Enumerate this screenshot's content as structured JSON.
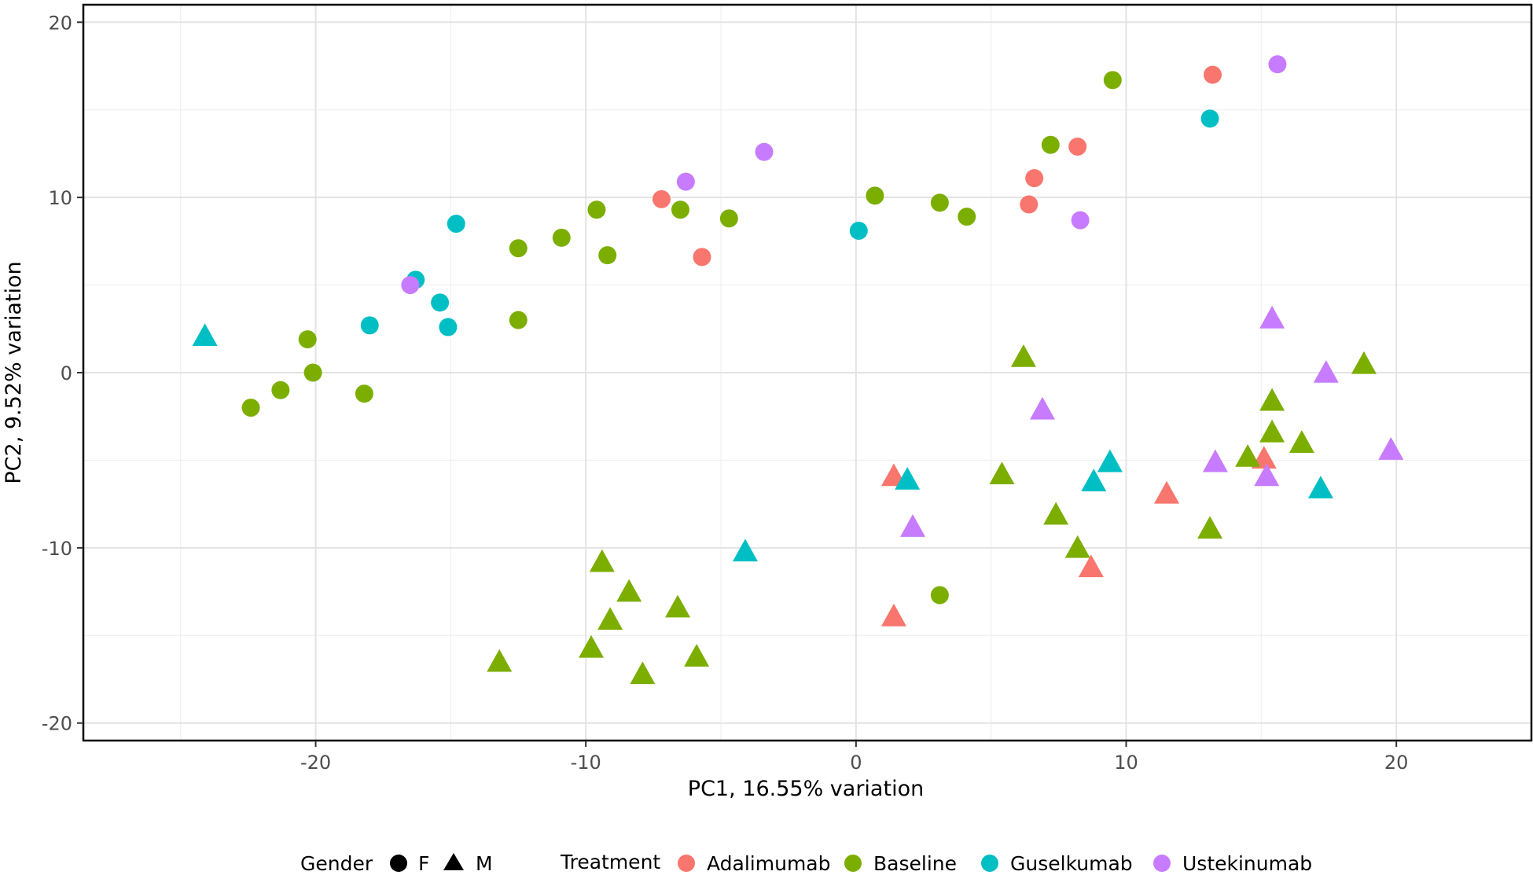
{
  "chart_data": {
    "type": "scatter",
    "xlabel": "PC1, 16.55% variation",
    "ylabel": "PC2, 9.52% variation",
    "xlim": [
      -28.6,
      25.0
    ],
    "ylim": [
      -21.0,
      21.0
    ],
    "x_ticks": [
      -20,
      -10,
      0,
      10,
      20
    ],
    "y_ticks": [
      -20,
      -10,
      0,
      10,
      20
    ],
    "grid": true,
    "legend_position": "bottom",
    "shape_legend": {
      "title": "Gender",
      "entries": [
        {
          "label": "F",
          "shape": "circle"
        },
        {
          "label": "M",
          "shape": "triangle"
        }
      ]
    },
    "series": [
      {
        "name": "Adalimumab",
        "color": "#F8766D",
        "points": [
          {
            "x": -7.2,
            "y": 9.9,
            "gender": "F"
          },
          {
            "x": -5.7,
            "y": 6.6,
            "gender": "F"
          },
          {
            "x": 6.4,
            "y": 9.6,
            "gender": "F"
          },
          {
            "x": 6.6,
            "y": 11.1,
            "gender": "F"
          },
          {
            "x": 8.2,
            "y": 12.9,
            "gender": "F"
          },
          {
            "x": 13.2,
            "y": 17.0,
            "gender": "F"
          },
          {
            "x": 1.4,
            "y": -5.9,
            "gender": "M"
          },
          {
            "x": 1.4,
            "y": -13.9,
            "gender": "M"
          },
          {
            "x": 8.7,
            "y": -11.1,
            "gender": "M"
          },
          {
            "x": 11.5,
            "y": -6.9,
            "gender": "M"
          },
          {
            "x": 15.1,
            "y": -4.9,
            "gender": "M"
          }
        ]
      },
      {
        "name": "Baseline",
        "color": "#7CAE00",
        "points": [
          {
            "x": -22.4,
            "y": -2.0,
            "gender": "F"
          },
          {
            "x": -21.3,
            "y": -1.0,
            "gender": "F"
          },
          {
            "x": -20.3,
            "y": 1.9,
            "gender": "F"
          },
          {
            "x": -20.1,
            "y": 0.0,
            "gender": "F"
          },
          {
            "x": -18.2,
            "y": -1.2,
            "gender": "F"
          },
          {
            "x": -12.5,
            "y": 7.1,
            "gender": "F"
          },
          {
            "x": -12.5,
            "y": 3.0,
            "gender": "F"
          },
          {
            "x": -10.9,
            "y": 7.7,
            "gender": "F"
          },
          {
            "x": -9.6,
            "y": 9.3,
            "gender": "F"
          },
          {
            "x": -9.2,
            "y": 6.7,
            "gender": "F"
          },
          {
            "x": -6.5,
            "y": 9.3,
            "gender": "F"
          },
          {
            "x": -4.7,
            "y": 8.8,
            "gender": "F"
          },
          {
            "x": 0.7,
            "y": 10.1,
            "gender": "F"
          },
          {
            "x": 3.1,
            "y": 9.7,
            "gender": "F"
          },
          {
            "x": 4.1,
            "y": 8.9,
            "gender": "F"
          },
          {
            "x": 7.2,
            "y": 13.0,
            "gender": "F"
          },
          {
            "x": 9.5,
            "y": 16.7,
            "gender": "F"
          },
          {
            "x": 3.1,
            "y": -12.7,
            "gender": "F"
          },
          {
            "x": -13.2,
            "y": -16.5,
            "gender": "M"
          },
          {
            "x": -9.8,
            "y": -15.7,
            "gender": "M"
          },
          {
            "x": -9.4,
            "y": -10.8,
            "gender": "M"
          },
          {
            "x": -9.1,
            "y": -14.1,
            "gender": "M"
          },
          {
            "x": -8.4,
            "y": -12.5,
            "gender": "M"
          },
          {
            "x": -7.9,
            "y": -17.2,
            "gender": "M"
          },
          {
            "x": -6.6,
            "y": -13.4,
            "gender": "M"
          },
          {
            "x": -5.9,
            "y": -16.2,
            "gender": "M"
          },
          {
            "x": 5.4,
            "y": -5.8,
            "gender": "M"
          },
          {
            "x": 6.2,
            "y": 0.9,
            "gender": "M"
          },
          {
            "x": 7.4,
            "y": -8.1,
            "gender": "M"
          },
          {
            "x": 8.2,
            "y": -10.0,
            "gender": "M"
          },
          {
            "x": 13.1,
            "y": -8.9,
            "gender": "M"
          },
          {
            "x": 14.5,
            "y": -4.8,
            "gender": "M"
          },
          {
            "x": 15.4,
            "y": -1.6,
            "gender": "M"
          },
          {
            "x": 15.4,
            "y": -3.4,
            "gender": "M"
          },
          {
            "x": 16.5,
            "y": -4.0,
            "gender": "M"
          },
          {
            "x": 18.8,
            "y": 0.5,
            "gender": "M"
          }
        ]
      },
      {
        "name": "Guselkumab",
        "color": "#00BFC4",
        "points": [
          {
            "x": -18.0,
            "y": 2.7,
            "gender": "F"
          },
          {
            "x": -16.3,
            "y": 5.3,
            "gender": "F"
          },
          {
            "x": -15.4,
            "y": 4.0,
            "gender": "F"
          },
          {
            "x": -15.1,
            "y": 2.6,
            "gender": "F"
          },
          {
            "x": -14.8,
            "y": 8.5,
            "gender": "F"
          },
          {
            "x": 0.1,
            "y": 8.1,
            "gender": "F"
          },
          {
            "x": 13.1,
            "y": 14.5,
            "gender": "F"
          },
          {
            "x": -24.1,
            "y": 2.1,
            "gender": "M"
          },
          {
            "x": -4.1,
            "y": -10.2,
            "gender": "M"
          },
          {
            "x": 1.9,
            "y": -6.1,
            "gender": "M"
          },
          {
            "x": 8.8,
            "y": -6.2,
            "gender": "M"
          },
          {
            "x": 9.4,
            "y": -5.1,
            "gender": "M"
          },
          {
            "x": 17.2,
            "y": -6.6,
            "gender": "M"
          }
        ]
      },
      {
        "name": "Ustekinumab",
        "color": "#C77CFF",
        "points": [
          {
            "x": -16.5,
            "y": 5.0,
            "gender": "F"
          },
          {
            "x": -6.3,
            "y": 10.9,
            "gender": "F"
          },
          {
            "x": -3.4,
            "y": 12.6,
            "gender": "F"
          },
          {
            "x": 8.3,
            "y": 8.7,
            "gender": "F"
          },
          {
            "x": 15.6,
            "y": 17.6,
            "gender": "F"
          },
          {
            "x": 2.1,
            "y": -8.8,
            "gender": "M"
          },
          {
            "x": 6.9,
            "y": -2.1,
            "gender": "M"
          },
          {
            "x": 13.3,
            "y": -5.1,
            "gender": "M"
          },
          {
            "x": 15.2,
            "y": -5.9,
            "gender": "M"
          },
          {
            "x": 15.4,
            "y": 3.1,
            "gender": "M"
          },
          {
            "x": 17.4,
            "y": 0.0,
            "gender": "M"
          },
          {
            "x": 19.8,
            "y": -4.4,
            "gender": "M"
          }
        ]
      }
    ]
  },
  "legend": {
    "gender_title": "Gender",
    "gender_f": "F",
    "gender_m": "M",
    "treatment_title": "Treatment"
  }
}
